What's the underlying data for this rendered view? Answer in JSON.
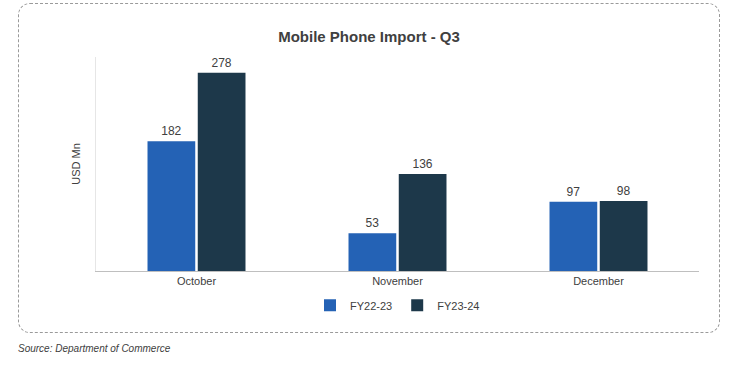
{
  "chart_data": {
    "type": "bar",
    "title": "Mobile Phone Import - Q3",
    "y_label": "USD Mn",
    "categories": [
      "October",
      "November",
      "December"
    ],
    "series": [
      {
        "name": "FY22-23",
        "color": "#2462b5",
        "values": [
          182,
          53,
          97
        ]
      },
      {
        "name": "FY23-24",
        "color": "#1d384a",
        "values": [
          278,
          136,
          98
        ]
      }
    ],
    "ylim": [
      0,
      300
    ],
    "grid": false,
    "legend": "bottom",
    "data_labels": true,
    "tick_labels": "x",
    "annotations": [
      "Source: Department of Commerce"
    ]
  }
}
